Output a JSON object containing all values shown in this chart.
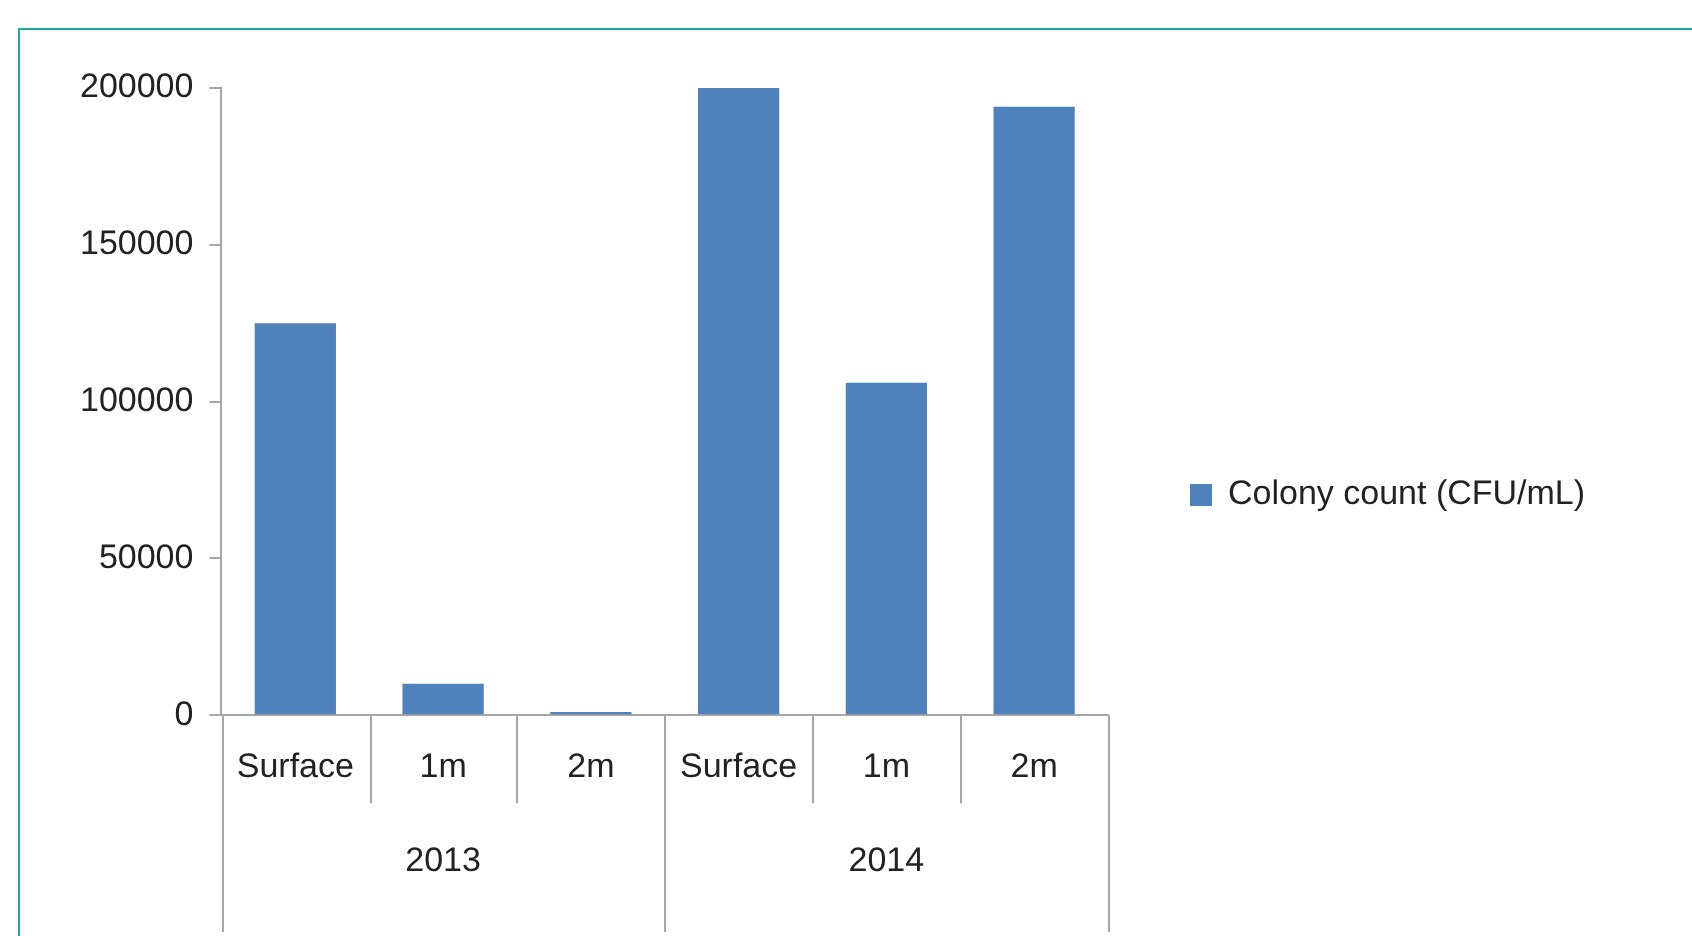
{
  "chart_data": {
    "type": "bar",
    "categories": [
      "Surface",
      "1m",
      "2m",
      "Surface",
      "1m",
      "2m"
    ],
    "series": [
      {
        "name": "Colony count (CFU/mL)",
        "color": "#4f81bd",
        "values": [
          125000,
          10000,
          1000,
          200000,
          106000,
          194000
        ]
      }
    ],
    "ylim": [
      0,
      200000
    ],
    "yticks": [
      0,
      50000,
      100000,
      150000,
      200000
    ],
    "grid": false,
    "legend": "right",
    "annotations": [
      "2013",
      "2014"
    ]
  }
}
